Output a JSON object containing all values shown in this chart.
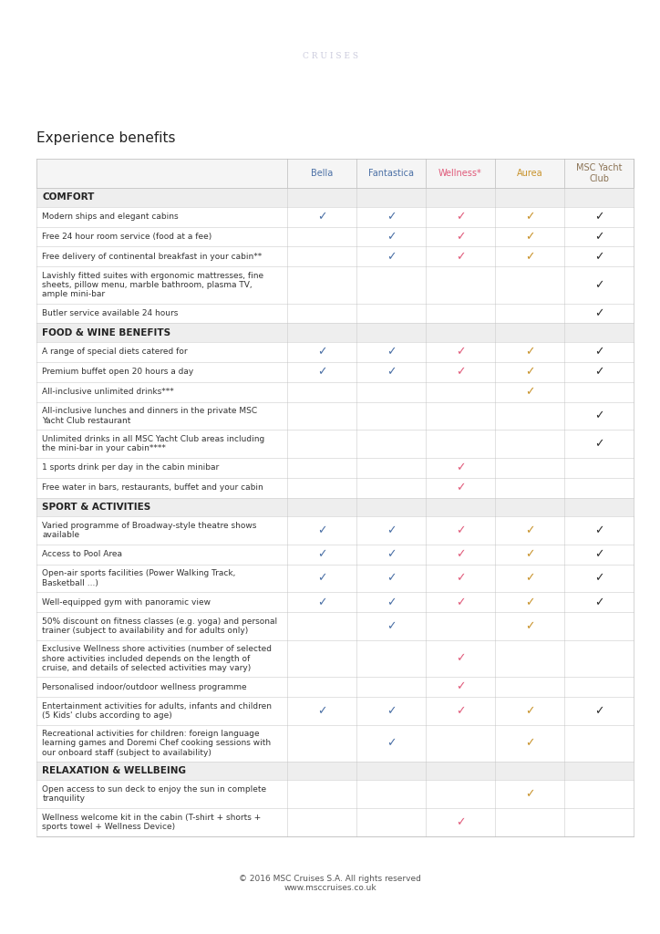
{
  "title": "Experience benefits",
  "header_bg": "#0a1460",
  "page_bg": "#ffffff",
  "columns": [
    "Bella",
    "Fantastica",
    "Wellness*",
    "Aurea",
    "MSC Yacht\nClub"
  ],
  "col_colors": [
    "#4a6fa5",
    "#4a6fa5",
    "#e05a7a",
    "#c8922a",
    "#8b7355"
  ],
  "check_colors": [
    "#4a6fa5",
    "#4a6fa5",
    "#e05a7a",
    "#c8922a",
    "#2c2c2c"
  ],
  "sections": [
    {
      "name": "COMFORT",
      "rows": [
        {
          "label": "Modern ships and elegant cabins",
          "checks": [
            1,
            1,
            1,
            1,
            1
          ]
        },
        {
          "label": "Free 24 hour room service (food at a fee)",
          "checks": [
            0,
            1,
            1,
            1,
            1
          ]
        },
        {
          "label": "Free delivery of continental breakfast in your cabin**",
          "checks": [
            0,
            1,
            1,
            1,
            1
          ]
        },
        {
          "label": "Lavishly fitted suites with ergonomic mattresses, fine\nsheets, pillow menu, marble bathroom, plasma TV,\nample mini-bar",
          "checks": [
            0,
            0,
            0,
            0,
            1
          ]
        },
        {
          "label": "Butler service available 24 hours",
          "checks": [
            0,
            0,
            0,
            0,
            1
          ]
        }
      ]
    },
    {
      "name": "FOOD & WINE BENEFITS",
      "rows": [
        {
          "label": "A range of special diets catered for",
          "checks": [
            1,
            1,
            1,
            1,
            1
          ]
        },
        {
          "label": "Premium buffet open 20 hours a day",
          "checks": [
            1,
            1,
            1,
            1,
            1
          ]
        },
        {
          "label": "All-inclusive unlimited drinks***",
          "checks": [
            0,
            0,
            0,
            1,
            0
          ]
        },
        {
          "label": "All-inclusive lunches and dinners in the private MSC\nYacht Club restaurant",
          "checks": [
            0,
            0,
            0,
            0,
            1
          ]
        },
        {
          "label": "Unlimited drinks in all MSC Yacht Club areas including\nthe mini-bar in your cabin****",
          "checks": [
            0,
            0,
            0,
            0,
            1
          ]
        },
        {
          "label": "1 sports drink per day in the cabin minibar",
          "checks": [
            0,
            0,
            1,
            0,
            0
          ]
        },
        {
          "label": "Free water in bars, restaurants, buffet and your cabin",
          "checks": [
            0,
            0,
            1,
            0,
            0
          ]
        }
      ]
    },
    {
      "name": "SPORT & ACTIVITIES",
      "rows": [
        {
          "label": "Varied programme of Broadway-style theatre shows\navailable",
          "checks": [
            1,
            1,
            1,
            1,
            1
          ]
        },
        {
          "label": "Access to Pool Area",
          "checks": [
            1,
            1,
            1,
            1,
            1
          ]
        },
        {
          "label": "Open-air sports facilities (Power Walking Track,\nBasketball ...)",
          "checks": [
            1,
            1,
            1,
            1,
            1
          ]
        },
        {
          "label": "Well-equipped gym with panoramic view",
          "checks": [
            1,
            1,
            1,
            1,
            1
          ]
        },
        {
          "label": "50% discount on fitness classes (e.g. yoga) and personal\ntrainer (subject to availability and for adults only)",
          "checks": [
            0,
            1,
            0,
            1,
            0
          ]
        },
        {
          "label": "Exclusive Wellness shore activities (number of selected\nshore activities included depends on the length of\ncruise, and details of selected activities may vary)",
          "checks": [
            0,
            0,
            1,
            0,
            0
          ]
        },
        {
          "label": "Personalised indoor/outdoor wellness programme",
          "checks": [
            0,
            0,
            1,
            0,
            0
          ]
        },
        {
          "label": "Entertainment activities for adults, infants and children\n(5 Kids' clubs according to age)",
          "checks": [
            1,
            1,
            1,
            1,
            1
          ]
        },
        {
          "label": "Recreational activities for children: foreign language\nlearning games and Doremi Chef cooking sessions with\nour onboard staff (subject to availability)",
          "checks": [
            0,
            1,
            0,
            1,
            0
          ]
        }
      ]
    },
    {
      "name": "RELAXATION & WELLBEING",
      "rows": [
        {
          "label": "Open access to sun deck to enjoy the sun in complete\ntranquility",
          "checks": [
            0,
            0,
            0,
            1,
            0
          ]
        },
        {
          "label": "Wellness welcome kit in the cabin (T-shirt + shorts +\nsports towel + Wellness Device)",
          "checks": [
            0,
            0,
            1,
            0,
            0
          ]
        }
      ]
    }
  ],
  "footer_text": "© 2016 MSC Cruises S.A. All rights reserved\nwww.msccruises.co.uk"
}
